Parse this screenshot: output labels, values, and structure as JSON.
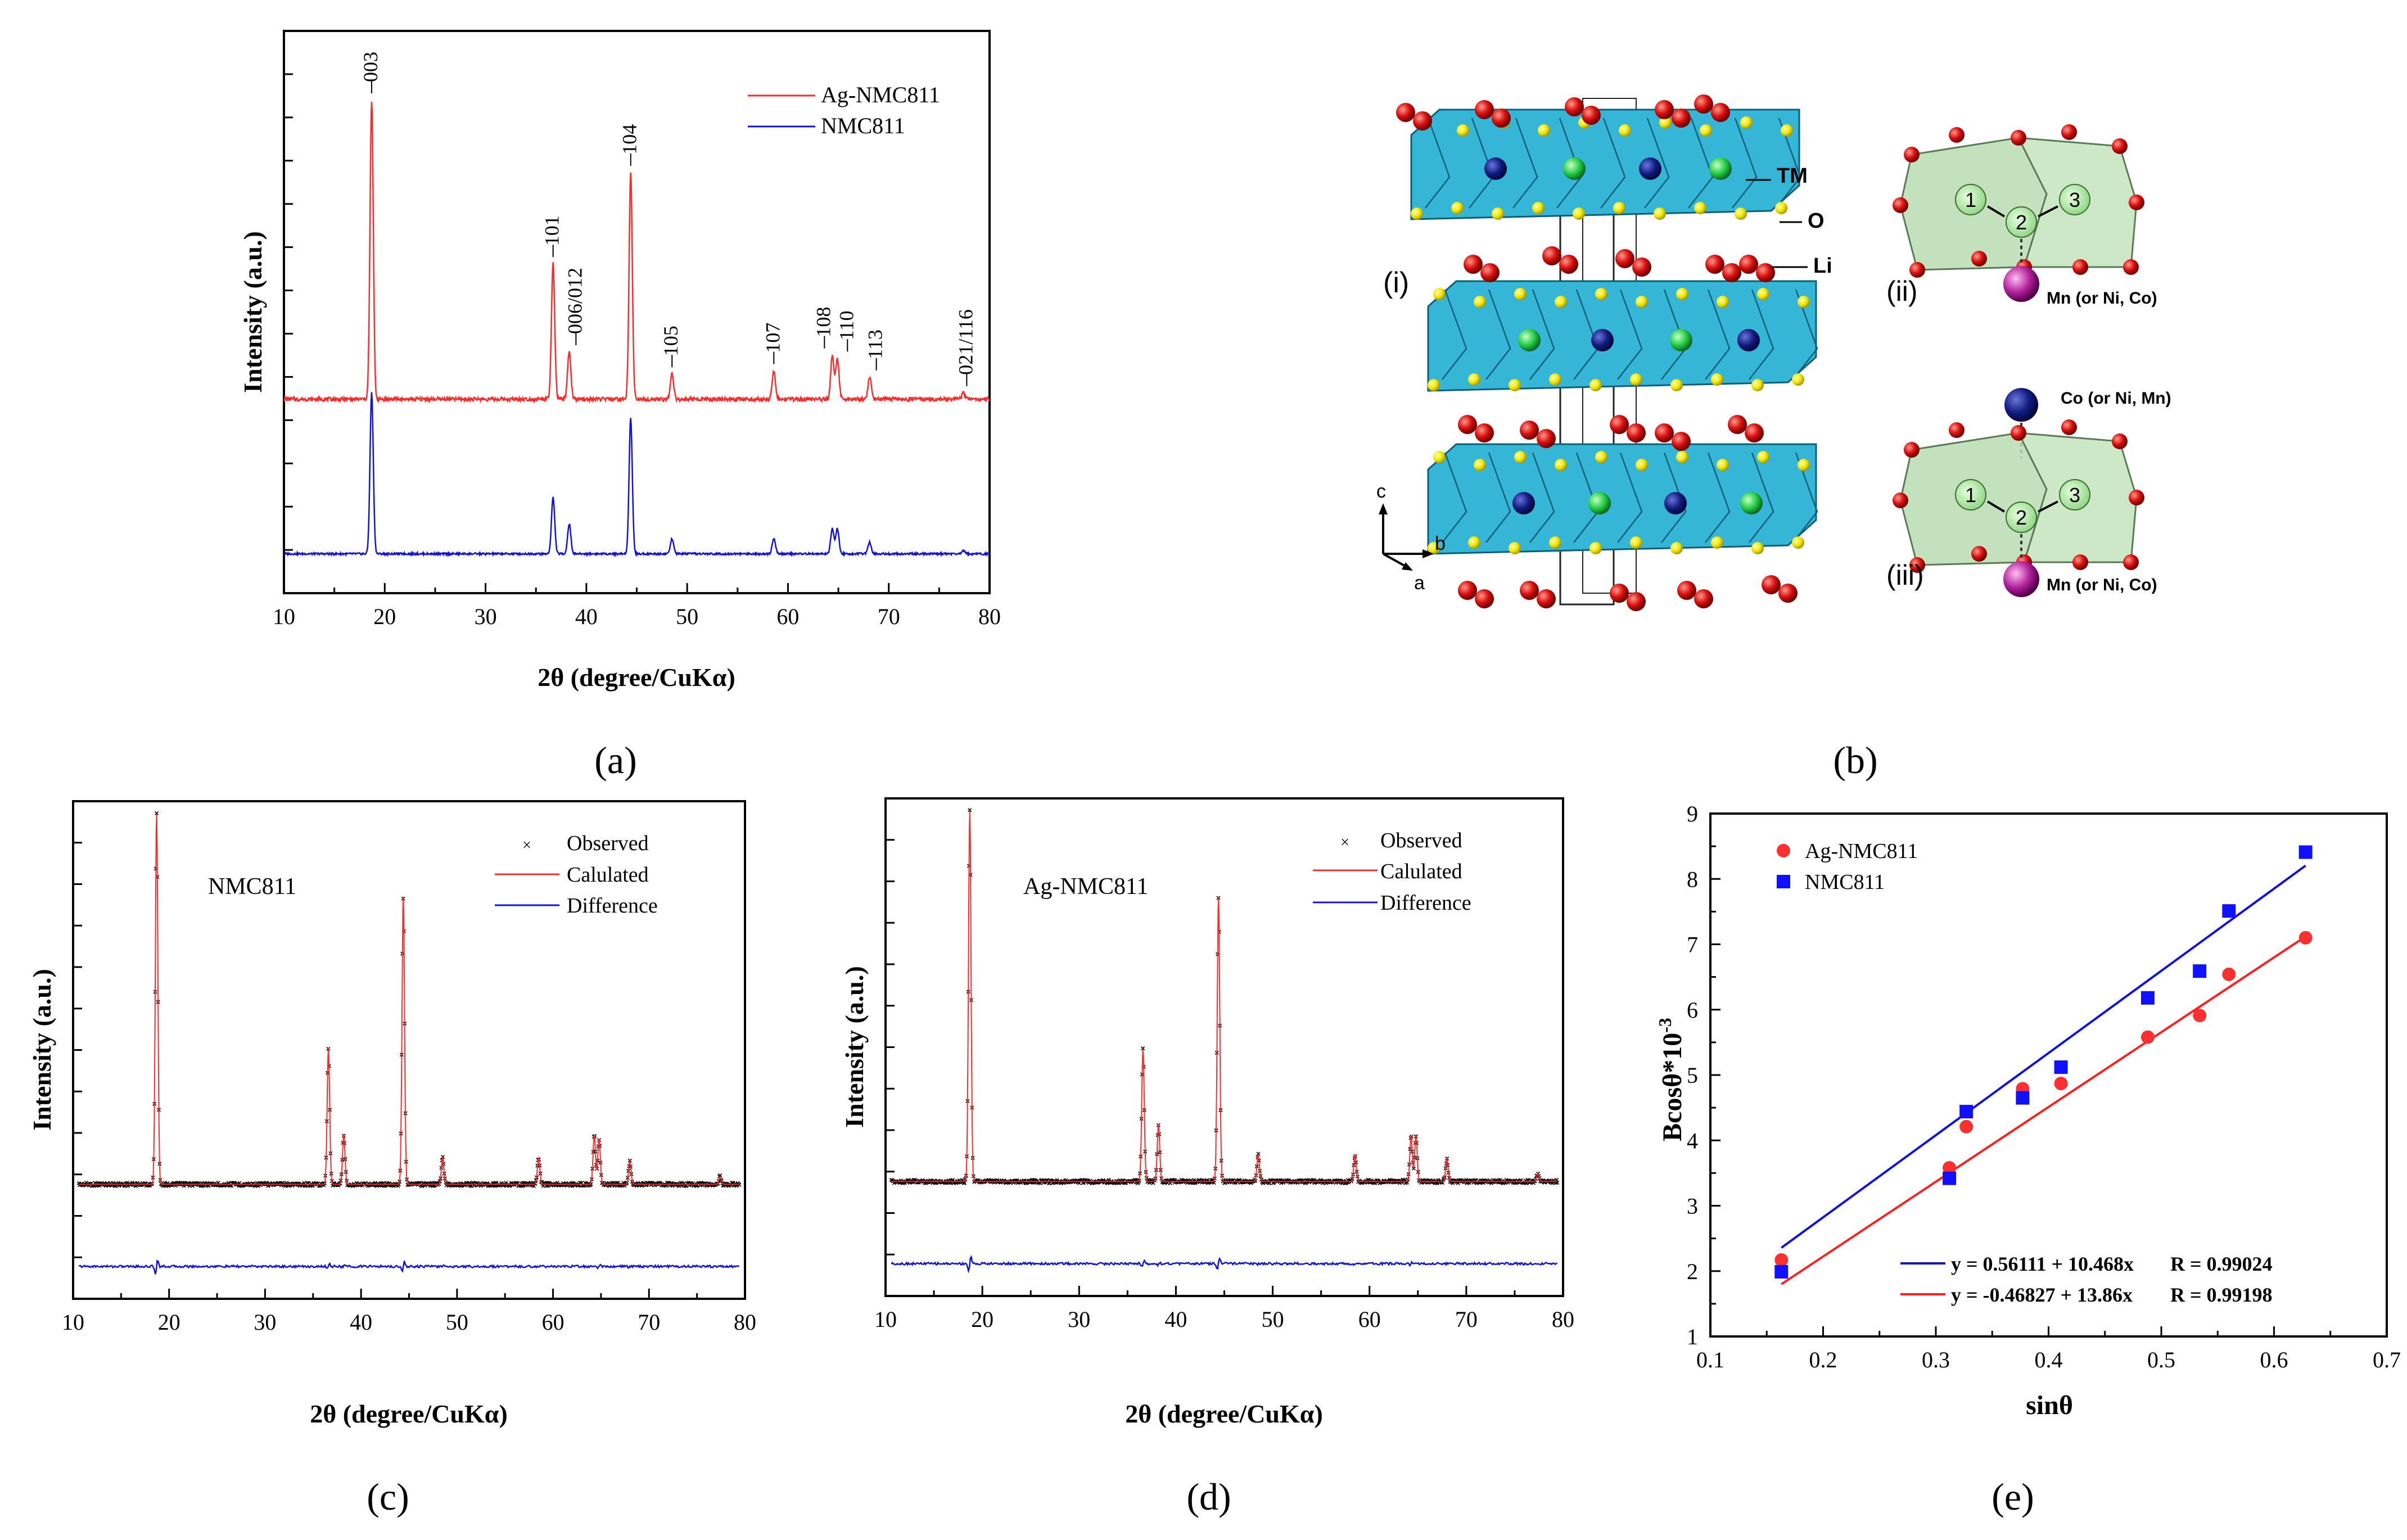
{
  "panel_labels": {
    "a": "(a)",
    "b": "(b)",
    "c": "(c)",
    "d": "(d)",
    "e": "(e)"
  },
  "panel_b": {
    "labels": {
      "i": "(i)",
      "ii": "(ii)",
      "iii": "(iii)",
      "tm": "TM",
      "o": "O",
      "li": "Li",
      "mn_ii": "Mn (or Ni, Co)",
      "co_iii": "Co (or Ni, Mn)",
      "mn_iii": "Mn (or Ni, Co)",
      "axis_c": "c",
      "axis_b": "b",
      "axis_a": "a",
      "site1": "1",
      "site2": "2",
      "site3": "3"
    }
  },
  "chart_data": [
    {
      "id": "a",
      "type": "line",
      "title": "",
      "xlabel": "2θ (degree/CuKα)",
      "ylabel": "Intensity (a.u.)",
      "xlim": [
        10,
        80
      ],
      "xticks": [
        10,
        20,
        30,
        40,
        50,
        60,
        70,
        80
      ],
      "legend": [
        "Ag-NMC811",
        "NMC811"
      ],
      "legend_position": "top-right",
      "colors": {
        "Ag-NMC811": "#ff2a2a",
        "NMC811": "#1010e0"
      },
      "peaks": [
        {
          "x": 18.7,
          "label": "003",
          "ag": 0.95,
          "nmc": 0.97
        },
        {
          "x": 36.7,
          "label": "101",
          "ag": 0.43,
          "nmc": 0.34
        },
        {
          "x": 38.3,
          "label": "006/012",
          "ag": 0.15,
          "nmc": 0.18
        },
        {
          "x": 44.4,
          "label": "104",
          "ag": 0.72,
          "nmc": 0.82
        },
        {
          "x": 48.5,
          "label": "105",
          "ag": 0.08,
          "nmc": 0.09
        },
        {
          "x": 58.6,
          "label": "107",
          "ag": 0.09,
          "nmc": 0.09
        },
        {
          "x": 64.4,
          "label": "108",
          "ag": 0.14,
          "nmc": 0.15
        },
        {
          "x": 64.9,
          "label": "110",
          "ag": 0.13,
          "nmc": 0.15
        },
        {
          "x": 68.1,
          "label": "113",
          "ag": 0.07,
          "nmc": 0.07
        },
        {
          "x": 77.4,
          "label": "021/116",
          "ag": 0.02,
          "nmc": 0.02
        }
      ]
    },
    {
      "id": "c",
      "type": "line",
      "title": "NMC811",
      "xlabel": "2θ (degree/CuKα)",
      "ylabel": "Intensity (a.u.)",
      "xlim": [
        10,
        80
      ],
      "xticks": [
        10,
        20,
        30,
        40,
        50,
        60,
        70,
        80
      ],
      "legend": [
        "Observed",
        "Calulated",
        "Difference"
      ],
      "legend_position": "top-right",
      "colors": {
        "Observed": "#000000",
        "Calulated": "#ff2a2a",
        "Difference": "#1010e0"
      },
      "peaks": [
        {
          "x": 18.7,
          "h": 0.98
        },
        {
          "x": 36.6,
          "h": 0.36
        },
        {
          "x": 38.2,
          "h": 0.13
        },
        {
          "x": 44.4,
          "h": 0.76
        },
        {
          "x": 48.5,
          "h": 0.07
        },
        {
          "x": 58.5,
          "h": 0.07
        },
        {
          "x": 64.3,
          "h": 0.13
        },
        {
          "x": 64.8,
          "h": 0.12
        },
        {
          "x": 68.0,
          "h": 0.06
        },
        {
          "x": 77.4,
          "h": 0.02
        }
      ]
    },
    {
      "id": "d",
      "type": "line",
      "title": "Ag-NMC811",
      "xlabel": "2θ (degree/CuKα)",
      "ylabel": "Intensity (a.u.)",
      "xlim": [
        10,
        80
      ],
      "xticks": [
        10,
        20,
        30,
        40,
        50,
        60,
        70,
        80
      ],
      "legend": [
        "Observed",
        "Calulated",
        "Difference"
      ],
      "legend_position": "top-right",
      "colors": {
        "Observed": "#000000",
        "Calulated": "#ff2a2a",
        "Difference": "#1010e0"
      },
      "peaks": [
        {
          "x": 18.7,
          "h": 0.98
        },
        {
          "x": 36.6,
          "h": 0.35
        },
        {
          "x": 38.2,
          "h": 0.15
        },
        {
          "x": 44.4,
          "h": 0.75
        },
        {
          "x": 48.5,
          "h": 0.07
        },
        {
          "x": 58.5,
          "h": 0.07
        },
        {
          "x": 64.3,
          "h": 0.12
        },
        {
          "x": 64.8,
          "h": 0.12
        },
        {
          "x": 68.0,
          "h": 0.06
        },
        {
          "x": 77.4,
          "h": 0.02
        }
      ]
    },
    {
      "id": "e",
      "type": "scatter",
      "xlabel": "sinθ",
      "ylabel": "Bcosθ*10",
      "ylabel_exp": "-3",
      "xlim": [
        0.1,
        0.7
      ],
      "ylim": [
        1,
        9
      ],
      "xticks": [
        0.1,
        0.2,
        0.3,
        0.4,
        0.5,
        0.6,
        0.7
      ],
      "yticks": [
        1,
        2,
        3,
        4,
        5,
        6,
        7,
        8,
        9
      ],
      "legend_position": "top-left",
      "series": [
        {
          "name": "Ag-NMC811",
          "color": "#ff3030",
          "marker": "circle",
          "x": [
            0.163,
            0.312,
            0.327,
            0.377,
            0.411,
            0.488,
            0.534,
            0.56,
            0.628
          ],
          "y": [
            2.17,
            3.58,
            4.21,
            4.79,
            4.87,
            5.58,
            5.91,
            6.54,
            7.1
          ],
          "fit": {
            "label": "y = -0.46827 + 13.86x",
            "r": "R = 0.99198",
            "intercept": -0.46827,
            "slope": 13.86,
            "color": "#ff2020"
          }
        },
        {
          "name": "NMC811",
          "color": "#1010ff",
          "marker": "square",
          "x": [
            0.163,
            0.312,
            0.327,
            0.377,
            0.411,
            0.488,
            0.534,
            0.56,
            0.628
          ],
          "y": [
            1.99,
            3.42,
            4.44,
            4.65,
            5.12,
            6.18,
            6.59,
            7.51,
            8.41
          ],
          "fit": {
            "label": "y = 0.56111 + 10.468x",
            "r": "R = 0.99024",
            "intercept": 0.56111,
            "slope": 10.468,
            "color": "#1010e0"
          }
        }
      ]
    }
  ]
}
